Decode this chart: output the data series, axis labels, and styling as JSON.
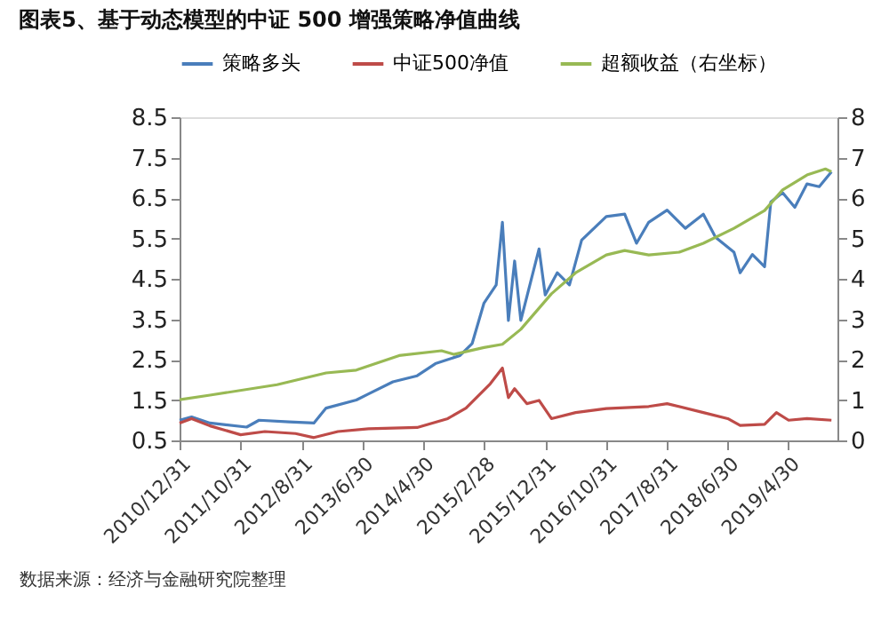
{
  "chart_data": {
    "type": "line",
    "title": "图表5、基于动态模型的中证 500 增强策略净值曲线",
    "annotations": [
      "数据来源：经济与金融研究院整理"
    ],
    "xlim": [
      "2010-12-31",
      "2019-12-31"
    ],
    "xticks": [
      {
        "value": "2010-12-31",
        "label": "2010/12/31"
      },
      {
        "value": "2011-10-31",
        "label": "2011/10/31"
      },
      {
        "value": "2012-08-31",
        "label": "2012/8/31"
      },
      {
        "value": "2013-06-30",
        "label": "2013/6/30"
      },
      {
        "value": "2014-04-30",
        "label": "2014/4/30"
      },
      {
        "value": "2015-02-28",
        "label": "2015/2/28"
      },
      {
        "value": "2015-12-31",
        "label": "2015/12/31"
      },
      {
        "value": "2016-10-31",
        "label": "2016/10/31"
      },
      {
        "value": "2017-08-31",
        "label": "2017/8/31"
      },
      {
        "value": "2018-06-30",
        "label": "2018/6/30"
      },
      {
        "value": "2019-04-30",
        "label": "2019/4/30"
      }
    ],
    "ylim": [
      0.5,
      8.5
    ],
    "yticks": [
      0.5,
      1.5,
      2.5,
      3.5,
      4.5,
      5.5,
      6.5,
      7.5,
      8.5
    ],
    "y2lim": [
      0,
      8
    ],
    "y2ticks": [
      0,
      1,
      2,
      3,
      4,
      5,
      6,
      7,
      8
    ],
    "grid": false,
    "legend": "top",
    "line_style": "solid",
    "series": [
      {
        "name": "策略多头",
        "color": "#4a7ebb",
        "x": [
          "2010-12-31",
          "2011-03",
          "2011-06",
          "2011-12",
          "2012-02",
          "2012-07",
          "2012-11",
          "2013-01",
          "2013-06",
          "2013-08",
          "2013-12",
          "2014-04",
          "2014-07",
          "2014-11",
          "2015-01",
          "2015-03",
          "2015-05",
          "2015-06",
          "2015-07",
          "2015-08",
          "2015-09",
          "2015-12",
          "2016-01",
          "2016-03",
          "2016-05",
          "2016-07",
          "2016-11",
          "2017-02",
          "2017-04",
          "2017-06",
          "2017-09",
          "2017-12",
          "2018-03",
          "2018-05",
          "2018-08",
          "2018-09",
          "2018-11",
          "2019-01",
          "2019-02",
          "2019-04",
          "2019-06",
          "2019-08",
          "2019-10",
          "2019-12"
        ],
        "values": [
          1.0,
          1.08,
          0.93,
          0.83,
          1.0,
          0.96,
          0.93,
          1.3,
          1.5,
          1.65,
          1.95,
          2.1,
          2.4,
          2.6,
          2.9,
          3.9,
          4.35,
          5.9,
          3.47,
          4.94,
          3.47,
          5.24,
          4.1,
          4.65,
          4.35,
          5.46,
          6.04,
          6.1,
          5.38,
          5.9,
          6.2,
          5.75,
          6.1,
          5.53,
          5.16,
          4.65,
          5.1,
          4.8,
          6.4,
          6.63,
          6.27,
          6.85,
          6.78,
          7.15
        ]
      },
      {
        "name": "中证500净值",
        "color": "#be4b48",
        "x": [
          "2010-12-31",
          "2011-03",
          "2011-06",
          "2011-11",
          "2012-03",
          "2012-08",
          "2012-11",
          "2013-03",
          "2013-08",
          "2014-04",
          "2014-09",
          "2014-12",
          "2015-04",
          "2015-06",
          "2015-07",
          "2015-08",
          "2015-10",
          "2015-12",
          "2016-02",
          "2016-06",
          "2016-11",
          "2017-06",
          "2017-09",
          "2018-03",
          "2018-07",
          "2018-09",
          "2019-01",
          "2019-03",
          "2019-05",
          "2019-08",
          "2019-12"
        ],
        "values": [
          0.93,
          1.04,
          0.86,
          0.64,
          0.72,
          0.67,
          0.57,
          0.72,
          0.79,
          0.82,
          1.04,
          1.3,
          1.9,
          2.29,
          1.56,
          1.78,
          1.41,
          1.49,
          1.04,
          1.19,
          1.29,
          1.34,
          1.41,
          1.19,
          1.04,
          0.87,
          0.9,
          1.19,
          1.0,
          1.04,
          1.0
        ]
      },
      {
        "name": "超额收益（右坐标）",
        "color": "#98b954",
        "axis": "y2",
        "x": [
          "2010-12-31",
          "2011-06",
          "2012-05",
          "2013-01",
          "2013-06",
          "2014-01",
          "2014-08",
          "2014-10",
          "2015-03",
          "2015-06",
          "2015-09",
          "2016-02",
          "2016-06",
          "2016-11",
          "2017-02",
          "2017-06",
          "2017-11",
          "2018-03",
          "2018-08",
          "2019-01",
          "2019-04",
          "2019-08",
          "2019-11",
          "2019-12"
        ],
        "values": [
          1.01,
          1.12,
          1.38,
          1.67,
          1.74,
          2.1,
          2.22,
          2.13,
          2.3,
          2.38,
          2.75,
          3.63,
          4.15,
          4.59,
          4.7,
          4.59,
          4.66,
          4.88,
          5.25,
          5.69,
          6.2,
          6.57,
          6.72,
          6.65
        ]
      }
    ]
  }
}
